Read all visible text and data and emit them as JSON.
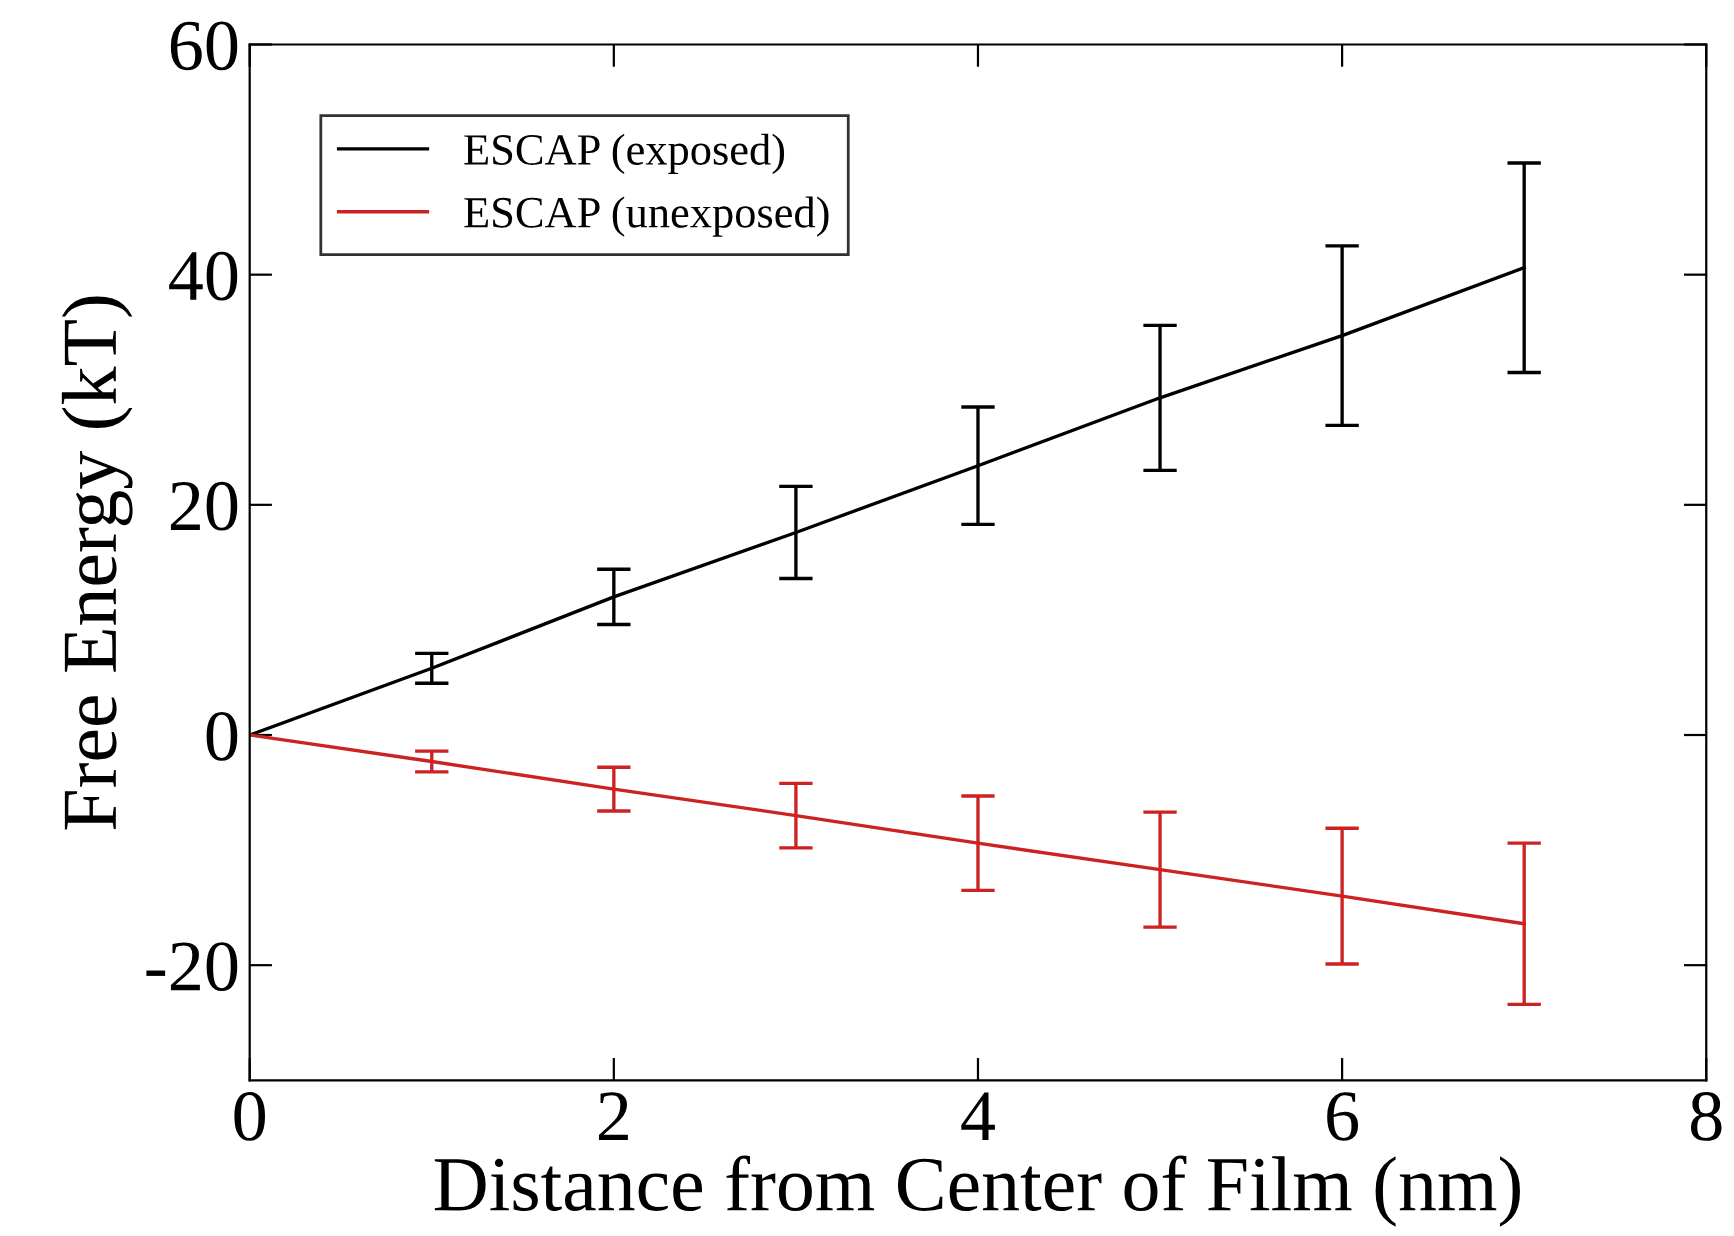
{
  "chart_data": {
    "type": "line",
    "xlabel": "Distance from Center of Film (nm)",
    "ylabel": "Free Energy (kT)",
    "x": [
      0,
      1,
      2,
      3,
      4,
      5,
      6,
      7
    ],
    "series": [
      {
        "name": "ESCAP (exposed)",
        "color": "#000000",
        "values": [
          0,
          5.8,
          12.0,
          17.6,
          23.4,
          29.3,
          34.7,
          40.6
        ],
        "errors": [
          null,
          1.3,
          2.4,
          4.0,
          5.1,
          6.3,
          7.8,
          9.1
        ]
      },
      {
        "name": "ESCAP (unexposed)",
        "color": "#cc2222",
        "values": [
          0,
          -2.3,
          -4.7,
          -7.0,
          -9.4,
          -11.7,
          -14.0,
          -16.4
        ],
        "errors": [
          null,
          0.9,
          1.9,
          2.8,
          4.1,
          5.0,
          5.9,
          7.0
        ]
      }
    ],
    "xlim": [
      0,
      8
    ],
    "ylim": [
      -30,
      60
    ],
    "xticks": [
      0,
      2,
      4,
      6,
      8
    ],
    "yticks": [
      -20,
      0,
      20,
      40,
      60
    ],
    "legend": "top left",
    "grid": false,
    "marker": "none",
    "line_style": "solid"
  }
}
